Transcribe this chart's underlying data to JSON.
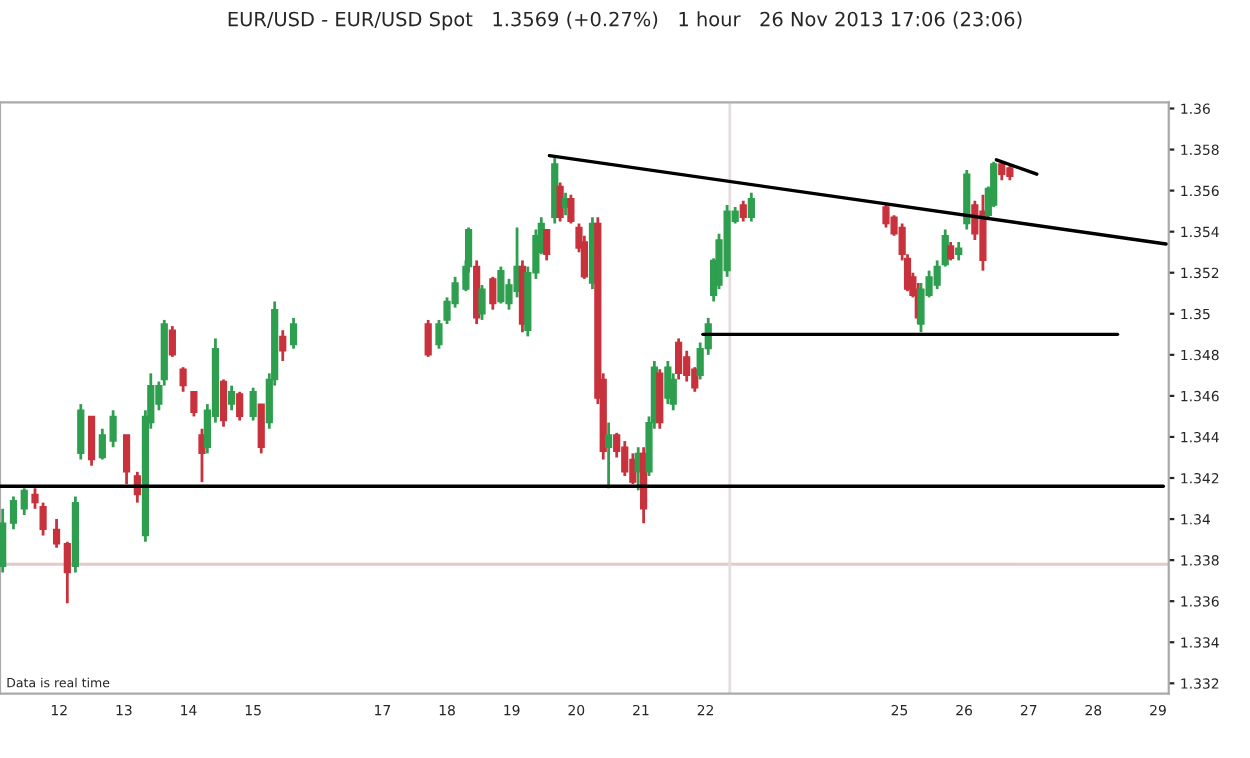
{
  "chart_data": {
    "type": "candlestick",
    "title": "EUR/USD - EUR/USD Spot   1.3569 (+0.27%)   1 hour   26 Nov 2013 17:06 (23:06)",
    "annotations": [
      "Data is real time"
    ],
    "x": [
      "2013-11-11T03:00",
      "2013-11-11T07:00",
      "2013-11-11T11:00",
      "2013-11-11T15:00",
      "2013-11-11T18:00",
      "2013-11-11T23:00",
      "2013-11-12T03:00",
      "2013-11-12T06:00",
      "2013-11-12T08:00",
      "2013-11-12T12:00",
      "2013-11-12T16:00",
      "2013-11-12T20:00",
      "2013-11-13T01:00",
      "2013-11-13T05:00",
      "2013-11-13T08:00",
      "2013-11-13T10:00",
      "2013-11-13T13:00",
      "2013-11-13T15:00",
      "2013-11-13T18:00",
      "2013-11-13T22:00",
      "2013-11-14T02:00",
      "2013-11-14T05:00",
      "2013-11-14T07:00",
      "2013-11-14T10:00",
      "2013-11-14T13:00",
      "2013-11-14T16:00",
      "2013-11-14T19:00",
      "2013-11-15T00:00",
      "2013-11-15T03:00",
      "2013-11-15T06:00",
      "2013-11-15T08:00",
      "2013-11-15T11:00",
      "2013-11-15T15:00",
      "2013-11-17T17:00",
      "2013-11-17T21:00",
      "2013-11-18T00:00",
      "2013-11-18T03:00",
      "2013-11-18T07:00",
      "2013-11-18T08:00",
      "2013-11-18T11:00",
      "2013-11-18T13:00",
      "2013-11-18T17:00",
      "2013-11-18T20:00",
      "2013-11-18T23:00",
      "2013-11-19T02:00",
      "2013-11-19T04:00",
      "2013-11-19T06:00",
      "2013-11-19T09:00",
      "2013-11-19T11:00",
      "2013-11-19T13:00",
      "2013-11-19T16:00",
      "2013-11-19T18:00",
      "2013-11-19T20:00",
      "2013-11-19T22:00",
      "2013-11-20T01:00",
      "2013-11-20T03:00",
      "2013-11-20T06:00",
      "2013-11-20T08:00",
      "2013-11-20T10:00",
      "2013-11-20T12:00",
      "2013-11-20T15:00",
      "2013-11-20T18:00",
      "2013-11-20T21:00",
      "2013-11-20T23:00",
      "2013-11-21T01:00",
      "2013-11-21T03:00",
      "2013-11-21T05:00",
      "2013-11-21T07:00",
      "2013-11-21T10:00",
      "2013-11-21T12:00",
      "2013-11-21T14:00",
      "2013-11-21T17:00",
      "2013-11-21T20:00",
      "2013-11-21T22:00",
      "2013-11-22T01:00",
      "2013-11-22T03:00",
      "2013-11-22T05:00",
      "2013-11-22T08:00",
      "2013-11-22T11:00",
      "2013-11-22T14:00",
      "2013-11-22T17:00",
      "2013-11-24T19:00",
      "2013-11-24T22:00",
      "2013-11-25T01:00",
      "2013-11-25T03:00",
      "2013-11-25T05:00",
      "2013-11-25T07:00",
      "2013-11-25T08:00",
      "2013-11-25T11:00",
      "2013-11-25T14:00",
      "2013-11-25T17:00",
      "2013-11-25T19:00",
      "2013-11-25T22:00",
      "2013-11-26T01:00",
      "2013-11-26T04:00",
      "2013-11-26T07:00",
      "2013-11-26T09:00",
      "2013-11-26T11:00",
      "2013-11-26T14:00",
      "2013-11-26T17:00"
    ],
    "ohlc": [
      [
        1.3377,
        1.3405,
        1.3374,
        1.3398
      ],
      [
        1.3398,
        1.3411,
        1.3395,
        1.3409
      ],
      [
        1.3405,
        1.3415,
        1.3402,
        1.3414
      ],
      [
        1.3412,
        1.3415,
        1.3405,
        1.3408
      ],
      [
        1.3406,
        1.3408,
        1.3392,
        1.3395
      ],
      [
        1.3395,
        1.34,
        1.3386,
        1.3388
      ],
      [
        1.3388,
        1.3389,
        1.3359,
        1.3374
      ],
      [
        1.3377,
        1.3411,
        1.3374,
        1.3408
      ],
      [
        1.3432,
        1.3456,
        1.3429,
        1.3453
      ],
      [
        1.345,
        1.345,
        1.3426,
        1.3429
      ],
      [
        1.343,
        1.3444,
        1.3429,
        1.3441
      ],
      [
        1.3438,
        1.3453,
        1.3435,
        1.345
      ],
      [
        1.3441,
        1.3441,
        1.3417,
        1.3423
      ],
      [
        1.3421,
        1.3423,
        1.3408,
        1.3412
      ],
      [
        1.3392,
        1.3453,
        1.3389,
        1.345
      ],
      [
        1.3447,
        1.3471,
        1.3444,
        1.3465
      ],
      [
        1.3456,
        1.3467,
        1.3453,
        1.3465
      ],
      [
        1.3468,
        1.3497,
        1.3465,
        1.3495
      ],
      [
        1.3492,
        1.3494,
        1.3479,
        1.348
      ],
      [
        1.3473,
        1.3474,
        1.3462,
        1.3465
      ],
      [
        1.3462,
        1.3462,
        1.345,
        1.3452
      ],
      [
        1.3441,
        1.3444,
        1.3418,
        1.3432
      ],
      [
        1.3435,
        1.3456,
        1.3432,
        1.3453
      ],
      [
        1.345,
        1.3488,
        1.3447,
        1.3483
      ],
      [
        1.3467,
        1.3468,
        1.3445,
        1.3448
      ],
      [
        1.3456,
        1.3465,
        1.3453,
        1.3462
      ],
      [
        1.3461,
        1.3462,
        1.3448,
        1.345
      ],
      [
        1.345,
        1.3464,
        1.3448,
        1.3462
      ],
      [
        1.3456,
        1.3456,
        1.3432,
        1.3435
      ],
      [
        1.3447,
        1.3471,
        1.3444,
        1.3468
      ],
      [
        1.3468,
        1.3506,
        1.3465,
        1.3502
      ],
      [
        1.3489,
        1.3492,
        1.3477,
        1.3482
      ],
      [
        1.3485,
        1.3498,
        1.3483,
        1.3495
      ],
      [
        1.3495,
        1.3497,
        1.3479,
        1.348
      ],
      [
        1.3485,
        1.3497,
        1.3483,
        1.3495
      ],
      [
        1.3497,
        1.3508,
        1.3495,
        1.3506
      ],
      [
        1.3505,
        1.3518,
        1.3503,
        1.3515
      ],
      [
        1.3512,
        1.3526,
        1.3511,
        1.3523
      ],
      [
        1.3523,
        1.3542,
        1.352,
        1.3541
      ],
      [
        1.3523,
        1.3526,
        1.3495,
        1.3498
      ],
      [
        1.35,
        1.3514,
        1.3497,
        1.3512
      ],
      [
        1.3517,
        1.3518,
        1.3502,
        1.3505
      ],
      [
        1.3506,
        1.3523,
        1.3505,
        1.3521
      ],
      [
        1.3505,
        1.3517,
        1.3502,
        1.3514
      ],
      [
        1.3511,
        1.3542,
        1.3508,
        1.3523
      ],
      [
        1.3523,
        1.3526,
        1.3491,
        1.3495
      ],
      [
        1.3492,
        1.3523,
        1.3489,
        1.352
      ],
      [
        1.352,
        1.3541,
        1.3517,
        1.3538
      ],
      [
        1.353,
        1.3547,
        1.3529,
        1.3544
      ],
      [
        1.3541,
        1.3541,
        1.3526,
        1.3529
      ],
      [
        1.3547,
        1.3577,
        1.3544,
        1.3573
      ],
      [
        1.3562,
        1.3564,
        1.3545,
        1.3547
      ],
      [
        1.3552,
        1.3559,
        1.3548,
        1.3556
      ],
      [
        1.3556,
        1.3558,
        1.3544,
        1.3545
      ],
      [
        1.3542,
        1.3544,
        1.353,
        1.3532
      ],
      [
        1.3535,
        1.3538,
        1.3517,
        1.3518
      ],
      [
        1.3515,
        1.3547,
        1.3512,
        1.3544
      ],
      [
        1.3544,
        1.3547,
        1.3456,
        1.3459
      ],
      [
        1.3468,
        1.3471,
        1.3429,
        1.3433
      ],
      [
        1.3435,
        1.3447,
        1.3415,
        1.3441
      ],
      [
        1.3441,
        1.3442,
        1.343,
        1.3433
      ],
      [
        1.3435,
        1.3438,
        1.3421,
        1.3423
      ],
      [
        1.3429,
        1.3432,
        1.3417,
        1.3418
      ],
      [
        1.3423,
        1.3435,
        1.3414,
        1.3432
      ],
      [
        1.3432,
        1.3435,
        1.3398,
        1.3405
      ],
      [
        1.3423,
        1.345,
        1.3421,
        1.3447
      ],
      [
        1.3447,
        1.3477,
        1.3444,
        1.3474
      ],
      [
        1.3471,
        1.3473,
        1.3444,
        1.3447
      ],
      [
        1.3459,
        1.3477,
        1.3456,
        1.3474
      ],
      [
        1.3456,
        1.3471,
        1.3453,
        1.3468
      ],
      [
        1.3486,
        1.3488,
        1.3468,
        1.3471
      ],
      [
        1.3479,
        1.3482,
        1.3467,
        1.347
      ],
      [
        1.3473,
        1.3474,
        1.3462,
        1.3464
      ],
      [
        1.347,
        1.3486,
        1.3468,
        1.3483
      ],
      [
        1.3483,
        1.3498,
        1.348,
        1.3495
      ],
      [
        1.3509,
        1.3527,
        1.3506,
        1.3526
      ],
      [
        1.3514,
        1.3539,
        1.3512,
        1.3536
      ],
      [
        1.3521,
        1.3553,
        1.3518,
        1.355
      ],
      [
        1.3545,
        1.3552,
        1.3544,
        1.355
      ],
      [
        1.3553,
        1.3555,
        1.3545,
        1.3547
      ],
      [
        1.3547,
        1.3559,
        1.3545,
        1.3556
      ],
      [
        1.3552,
        1.3553,
        1.3542,
        1.3544
      ],
      [
        1.3547,
        1.3548,
        1.3538,
        1.3539
      ],
      [
        1.3542,
        1.3544,
        1.3526,
        1.3529
      ],
      [
        1.3527,
        1.3529,
        1.3511,
        1.3512
      ],
      [
        1.3518,
        1.352,
        1.3508,
        1.3509
      ],
      [
        1.3512,
        1.3515,
        1.3495,
        1.3498
      ],
      [
        1.3495,
        1.3515,
        1.3491,
        1.3512
      ],
      [
        1.3509,
        1.3521,
        1.3508,
        1.3518
      ],
      [
        1.3514,
        1.3526,
        1.3512,
        1.3523
      ],
      [
        1.3524,
        1.3541,
        1.3523,
        1.3538
      ],
      [
        1.3533,
        1.3535,
        1.3526,
        1.3527
      ],
      [
        1.3529,
        1.3535,
        1.3526,
        1.3532
      ],
      [
        1.3544,
        1.357,
        1.3541,
        1.3568
      ],
      [
        1.3553,
        1.3555,
        1.3536,
        1.3539
      ],
      [
        1.355,
        1.3558,
        1.3521,
        1.3526
      ],
      [
        1.3548,
        1.3562,
        1.3547,
        1.3561
      ],
      [
        1.3553,
        1.3574,
        1.3552,
        1.3573
      ],
      [
        1.3573,
        1.3574,
        1.3565,
        1.3568
      ],
      [
        1.3571,
        1.3572,
        1.3565,
        1.3567
      ]
    ],
    "series": [
      {
        "type": "line",
        "color": "#000000",
        "x": [
          "2013-11-19T14:00",
          "2013-11-29T03:00"
        ],
        "values": [
          1.3577,
          1.3534
        ]
      },
      {
        "type": "line",
        "color": "#000000",
        "x": [
          "2013-11-26T12:00",
          "2013-11-27T03:00"
        ],
        "values": [
          1.3575,
          1.3568
        ]
      },
      {
        "type": "line",
        "color": "#000000",
        "x": [
          "2013-11-11T02:00",
          "2013-11-29T02:00"
        ],
        "values": [
          1.3416,
          1.3416
        ]
      },
      {
        "type": "line",
        "color": "#000000",
        "x": [
          "2013-11-21T23:00",
          "2013-11-28T09:00"
        ],
        "values": [
          1.349,
          1.349
        ]
      }
    ],
    "ref_lines": [
      {
        "axis": "y",
        "value": 1.3378,
        "color": "#e6c8c8"
      },
      {
        "axis": "x",
        "value": "2013-11-22T09:00",
        "color": "#e6dede"
      }
    ],
    "xlim": [
      "2013-11-11T02:00",
      "2013-11-29T04:00"
    ],
    "xticks": [
      {
        "value": "2013-11-12",
        "label": "12"
      },
      {
        "value": "2013-11-13",
        "label": "13"
      },
      {
        "value": "2013-11-14",
        "label": "14"
      },
      {
        "value": "2013-11-15",
        "label": "15"
      },
      {
        "value": "2013-11-17",
        "label": "17"
      },
      {
        "value": "2013-11-18",
        "label": "18"
      },
      {
        "value": "2013-11-19",
        "label": "19"
      },
      {
        "value": "2013-11-20",
        "label": "20"
      },
      {
        "value": "2013-11-21",
        "label": "21"
      },
      {
        "value": "2013-11-22",
        "label": "22"
      },
      {
        "value": "2013-11-25",
        "label": "25"
      },
      {
        "value": "2013-11-26",
        "label": "26"
      },
      {
        "value": "2013-11-27",
        "label": "27"
      },
      {
        "value": "2013-11-28",
        "label": "28"
      },
      {
        "value": "2013-11-29",
        "label": "29"
      }
    ],
    "ylim": [
      1.3315,
      1.3603
    ],
    "yticks": [
      1.332,
      1.334,
      1.336,
      1.338,
      1.34,
      1.342,
      1.344,
      1.346,
      1.348,
      1.35,
      1.352,
      1.354,
      1.356,
      1.358,
      1.36
    ],
    "grid": false,
    "legend": false
  }
}
